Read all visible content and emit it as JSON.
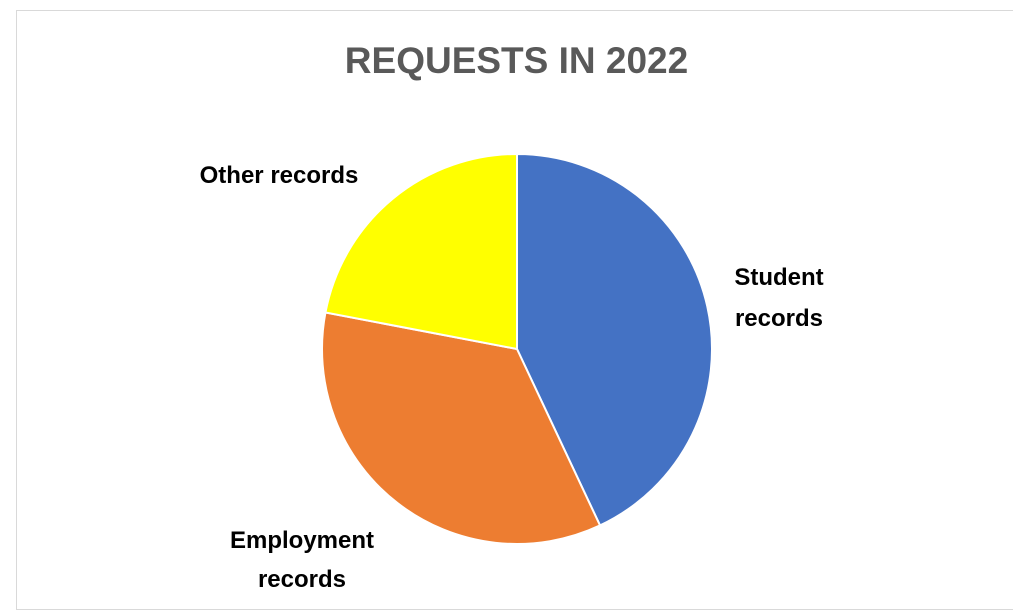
{
  "chart_data": {
    "type": "pie",
    "title": "REQUESTS IN 2022",
    "categories": [
      "Student records",
      "Employment records",
      "Other records"
    ],
    "values": [
      43,
      35,
      22
    ],
    "colors": [
      "#4472c4",
      "#ed7d31",
      "#ffff00"
    ],
    "labels": {
      "student": [
        "Student",
        "records"
      ],
      "employment": [
        "Employment",
        "records"
      ],
      "other": [
        "Other records"
      ]
    }
  }
}
